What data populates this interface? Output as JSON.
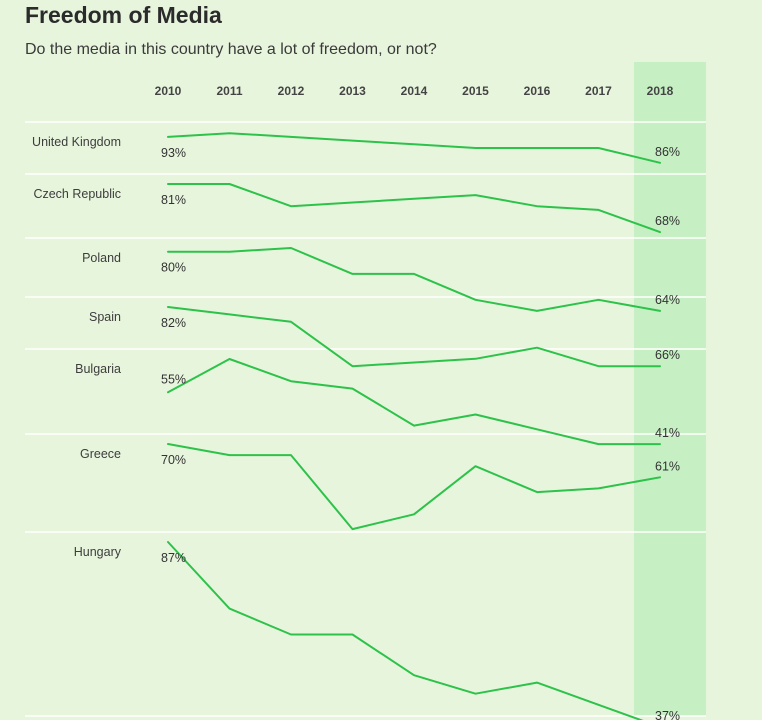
{
  "title": "Freedom of Media",
  "subtitle": "Do the media in this country have a lot of freedom, or not?",
  "colors": {
    "background": "#e8f5dd",
    "highlight_column": "#c6efc3",
    "line": "#2dc24a",
    "separator": "#ffffff"
  },
  "chart_data": {
    "type": "line",
    "x": [
      "2010",
      "2011",
      "2012",
      "2013",
      "2014",
      "2015",
      "2016",
      "2017",
      "2018"
    ],
    "highlight": "2018",
    "small_multiples": true,
    "series": [
      {
        "name": "United Kingdom",
        "values": [
          93,
          94,
          93,
          92,
          91,
          90,
          90,
          90,
          86
        ],
        "start_label": "93%",
        "end_label": "86%"
      },
      {
        "name": "Czech Republic",
        "values": [
          81,
          81,
          75,
          76,
          77,
          78,
          75,
          74,
          68
        ],
        "start_label": "81%",
        "end_label": "68%"
      },
      {
        "name": "Poland",
        "values": [
          80,
          80,
          81,
          74,
          74,
          67,
          64,
          67,
          64
        ],
        "start_label": "80%",
        "end_label": "64%"
      },
      {
        "name": "Spain",
        "values": [
          82,
          80,
          78,
          66,
          67,
          68,
          71,
          66,
          66
        ],
        "start_label": "82%",
        "end_label": "66%"
      },
      {
        "name": "Bulgaria",
        "values": [
          55,
          64,
          58,
          56,
          46,
          49,
          45,
          41,
          41
        ],
        "start_label": "55%",
        "end_label": "41%"
      },
      {
        "name": "Greece",
        "values": [
          70,
          67,
          67,
          47,
          51,
          64,
          57,
          58,
          61
        ],
        "start_label": "70%",
        "end_label": "61%"
      },
      {
        "name": "Hungary",
        "values": [
          87,
          69,
          62,
          62,
          51,
          46,
          49,
          43,
          37
        ],
        "start_label": "87%",
        "end_label": "37%"
      }
    ]
  }
}
